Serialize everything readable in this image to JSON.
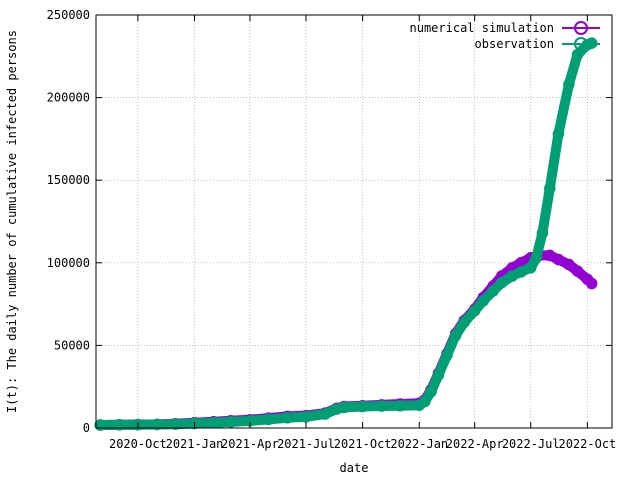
{
  "chart_data": {
    "type": "line",
    "xlabel": "date",
    "ylabel": "I(t): The daily number of cumulative infected persons",
    "x_axis_type": "date",
    "xlim": [
      "2020-07-25",
      "2022-11-10"
    ],
    "ylim": [
      0,
      250000
    ],
    "y_ticks": [
      0,
      50000,
      100000,
      150000,
      200000,
      250000
    ],
    "y_tick_labels": [
      "0",
      "50000",
      "100000",
      "150000",
      "200000",
      "250000"
    ],
    "x_ticks": [
      "2020-10-01",
      "2021-01-01",
      "2021-04-01",
      "2021-07-01",
      "2021-10-01",
      "2022-01-01",
      "2022-04-01",
      "2022-07-01",
      "2022-10-01"
    ],
    "x_tick_labels": [
      "2020-Oct",
      "2021-Jan",
      "2021-Apr",
      "2021-Jul",
      "2021-Oct",
      "2022-Jan",
      "2022-Apr",
      "2022-Jul",
      "2022-Oct"
    ],
    "grid": true,
    "legend_position": "top-right",
    "series": [
      {
        "name": "numerical simulation",
        "color": "#9400d3",
        "marker": "circle",
        "points": [
          [
            "2020-08-01",
            1800
          ],
          [
            "2020-09-01",
            2000
          ],
          [
            "2020-10-01",
            2100
          ],
          [
            "2020-11-01",
            2200
          ],
          [
            "2020-12-01",
            2600
          ],
          [
            "2021-01-01",
            3200
          ],
          [
            "2021-02-01",
            3800
          ],
          [
            "2021-03-01",
            4400
          ],
          [
            "2021-04-01",
            5000
          ],
          [
            "2021-05-01",
            6000
          ],
          [
            "2021-06-01",
            7000
          ],
          [
            "2021-07-01",
            7500
          ],
          [
            "2021-08-01",
            9000
          ],
          [
            "2021-08-20",
            12000
          ],
          [
            "2021-09-01",
            13000
          ],
          [
            "2021-10-01",
            13500
          ],
          [
            "2021-11-01",
            14000
          ],
          [
            "2021-12-01",
            14500
          ],
          [
            "2022-01-01",
            15000
          ],
          [
            "2022-01-10",
            17000
          ],
          [
            "2022-01-20",
            23000
          ],
          [
            "2022-02-01",
            33000
          ],
          [
            "2022-02-15",
            45000
          ],
          [
            "2022-03-01",
            57000
          ],
          [
            "2022-03-15",
            65000
          ],
          [
            "2022-04-01",
            72000
          ],
          [
            "2022-04-15",
            79000
          ],
          [
            "2022-05-01",
            86000
          ],
          [
            "2022-05-15",
            92000
          ],
          [
            "2022-06-01",
            97000
          ],
          [
            "2022-06-15",
            100000
          ],
          [
            "2022-07-01",
            103000
          ],
          [
            "2022-07-15",
            104500
          ],
          [
            "2022-08-01",
            104500
          ],
          [
            "2022-08-15",
            102000
          ],
          [
            "2022-09-01",
            99000
          ],
          [
            "2022-09-15",
            95000
          ],
          [
            "2022-10-01",
            90000
          ],
          [
            "2022-10-08",
            87500
          ]
        ]
      },
      {
        "name": "observation",
        "color": "#009e73",
        "marker": "circle",
        "points": [
          [
            "2020-08-01",
            1800
          ],
          [
            "2020-09-01",
            1900
          ],
          [
            "2020-10-01",
            2000
          ],
          [
            "2020-11-01",
            2100
          ],
          [
            "2020-12-01",
            2300
          ],
          [
            "2021-01-01",
            2700
          ],
          [
            "2021-02-01",
            3200
          ],
          [
            "2021-03-01",
            3700
          ],
          [
            "2021-04-01",
            4300
          ],
          [
            "2021-05-01",
            5200
          ],
          [
            "2021-06-01",
            6200
          ],
          [
            "2021-07-01",
            6800
          ],
          [
            "2021-08-01",
            8500
          ],
          [
            "2021-08-20",
            11500
          ],
          [
            "2021-09-01",
            12500
          ],
          [
            "2021-10-01",
            13000
          ],
          [
            "2021-11-01",
            13300
          ],
          [
            "2021-12-01",
            13500
          ],
          [
            "2022-01-01",
            13800
          ],
          [
            "2022-01-10",
            16000
          ],
          [
            "2022-01-20",
            22000
          ],
          [
            "2022-02-01",
            32000
          ],
          [
            "2022-02-15",
            44000
          ],
          [
            "2022-03-01",
            56000
          ],
          [
            "2022-03-15",
            64000
          ],
          [
            "2022-04-01",
            71000
          ],
          [
            "2022-04-15",
            77000
          ],
          [
            "2022-05-01",
            83000
          ],
          [
            "2022-05-15",
            88000
          ],
          [
            "2022-06-01",
            92000
          ],
          [
            "2022-06-15",
            94500
          ],
          [
            "2022-07-01",
            97000
          ],
          [
            "2022-07-10",
            103000
          ],
          [
            "2022-07-20",
            118000
          ],
          [
            "2022-08-01",
            145000
          ],
          [
            "2022-08-15",
            178000
          ],
          [
            "2022-09-01",
            208000
          ],
          [
            "2022-09-15",
            226000
          ],
          [
            "2022-10-01",
            232000
          ],
          [
            "2022-10-08",
            233000
          ]
        ]
      }
    ]
  }
}
